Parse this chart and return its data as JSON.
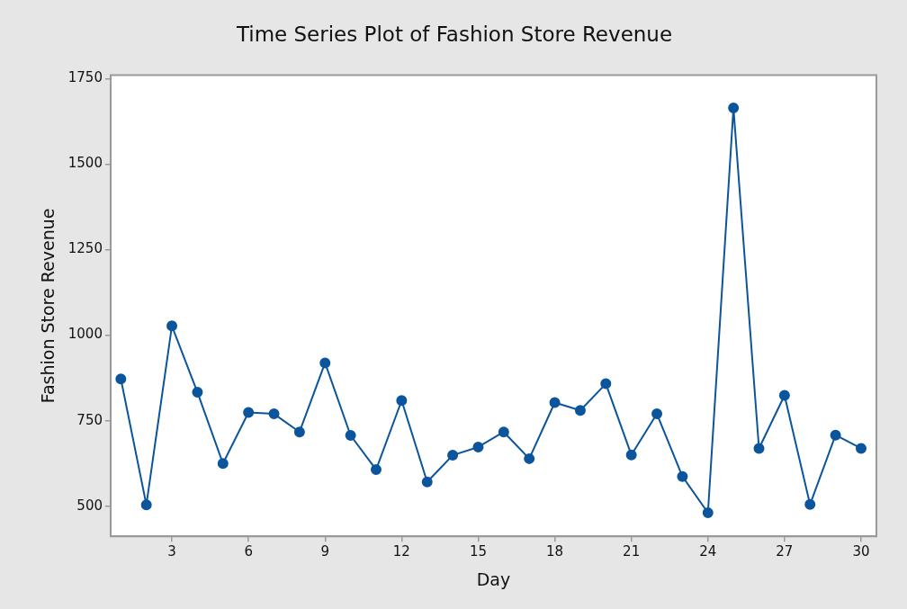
{
  "chart_data": {
    "type": "line",
    "title": "Time Series Plot of Fashion Store Revenue",
    "xlabel": "Day",
    "ylabel": "Fashion Store Revenue",
    "x": [
      1,
      2,
      3,
      4,
      5,
      6,
      7,
      8,
      9,
      10,
      11,
      12,
      13,
      14,
      15,
      16,
      17,
      18,
      19,
      20,
      21,
      22,
      23,
      24,
      25,
      26,
      27,
      28,
      29,
      30
    ],
    "series": [
      {
        "color": "#0b559c",
        "values": [
          872,
          504,
          1027,
          833,
          625,
          774,
          770,
          717,
          919,
          707,
          607,
          809,
          571,
          649,
          673,
          717,
          639,
          803,
          780,
          858,
          650,
          770,
          587,
          481,
          1664,
          669,
          824,
          505,
          708,
          669
        ]
      }
    ],
    "xlim": [
      0.6,
      30.6
    ],
    "xticks": [
      3,
      6,
      9,
      12,
      15,
      18,
      21,
      24,
      27,
      30
    ],
    "ylim": [
      412,
      1760
    ],
    "yticks": [
      500,
      750,
      1000,
      1250,
      1500,
      1750
    ],
    "grid": false,
    "legend": false,
    "marker": "circle",
    "line_style": "solid"
  }
}
